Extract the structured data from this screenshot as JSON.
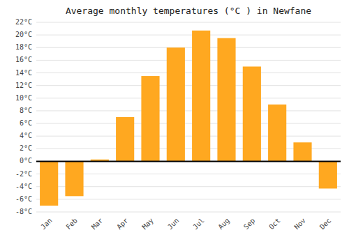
{
  "chart_data": {
    "type": "bar",
    "title": "Average monthly temperatures (°C ) in Newfane",
    "categories": [
      "Jan",
      "Feb",
      "Mar",
      "Apr",
      "May",
      "Jun",
      "Jul",
      "Aug",
      "Sep",
      "Oct",
      "Nov",
      "Dec"
    ],
    "values": [
      -7,
      -5.5,
      0.3,
      7,
      13.5,
      18,
      20.7,
      19.5,
      15,
      9,
      3,
      -4.3
    ],
    "color": "#FFA820",
    "ylim": [
      -8,
      22
    ],
    "yticks": [
      {
        "value": -8,
        "label": "-8°C"
      },
      {
        "value": -6,
        "label": "-6°C"
      },
      {
        "value": -4,
        "label": "-4°C"
      },
      {
        "value": -2,
        "label": "-2°C"
      },
      {
        "value": 0,
        "label": "0°C"
      },
      {
        "value": 2,
        "label": "2°C"
      },
      {
        "value": 4,
        "label": "4°C"
      },
      {
        "value": 6,
        "label": "6°C"
      },
      {
        "value": 8,
        "label": "8°C"
      },
      {
        "value": 10,
        "label": "10°C"
      },
      {
        "value": 12,
        "label": "12°C"
      },
      {
        "value": 14,
        "label": "14°C"
      },
      {
        "value": 16,
        "label": "16°C"
      },
      {
        "value": 18,
        "label": "18°C"
      },
      {
        "value": 20,
        "label": "20°C"
      },
      {
        "value": 22,
        "label": "22°C"
      }
    ],
    "grid": true
  }
}
